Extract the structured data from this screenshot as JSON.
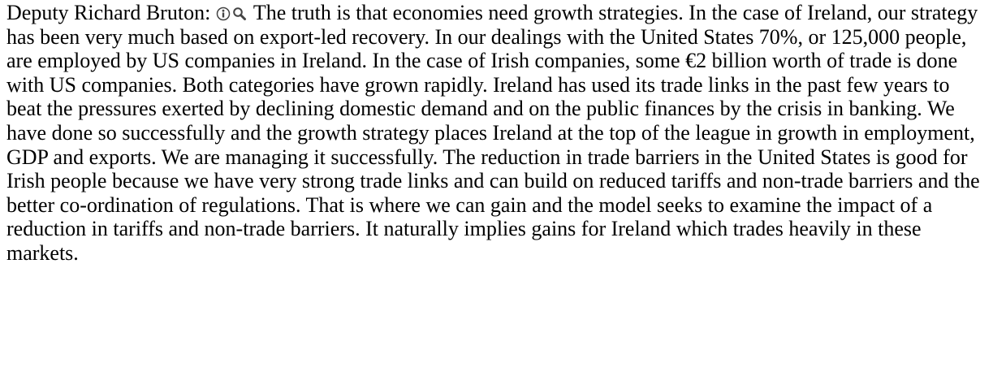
{
  "speech": {
    "speaker": "Deputy Richard Bruton:",
    "text": "The truth is that economies need growth strategies. In the case of Ireland, our strategy has been very much based on export-led recovery. In our dealings with the United States 70%, or 125,000 people, are employed by US companies in Ireland. In the case of Irish companies, some €2 billion worth of trade is done with US companies. Both categories have grown rapidly. Ireland has used its trade links in the past few years to beat the pressures exerted by declining domestic demand and on the public finances by the crisis in banking. We have done so successfully and the growth strategy places Ireland at the top of the league in growth in employment, GDP and exports. We are managing it successfully. The reduction in trade barriers in the United States is good for Irish people because we have very strong trade links and can build on reduced tariffs and non-trade barriers and the better co-ordination of regulations. That is where we can gain and the model seeks to examine the impact of a reduction in tariffs and non-trade barriers. It naturally implies gains for Ireland which trades heavily in these markets."
  }
}
